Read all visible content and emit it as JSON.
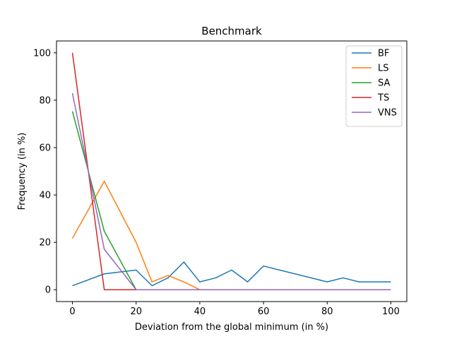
{
  "chart_data": {
    "type": "line",
    "title": "Benchmark",
    "xlabel": "Deviation from the global minimum (in %)",
    "ylabel": "Frequency (in %)",
    "xlim": [
      -5,
      105
    ],
    "ylim": [
      -5,
      105
    ],
    "xticks": [
      0,
      20,
      40,
      60,
      80,
      100
    ],
    "yticks": [
      0,
      20,
      40,
      60,
      80,
      100
    ],
    "grid": false,
    "legend_position": "top-right",
    "series": [
      {
        "name": "BF",
        "color": "#1f77b4",
        "x": [
          0,
          10,
          20,
          25,
          30,
          35,
          40,
          45,
          50,
          55,
          60,
          80,
          85,
          90,
          100
        ],
        "y": [
          1.7,
          6.7,
          8.3,
          1.7,
          5.0,
          11.7,
          3.3,
          5.0,
          8.3,
          3.3,
          10.0,
          3.3,
          5.0,
          3.3,
          3.3
        ]
      },
      {
        "name": "LS",
        "color": "#ff7f0e",
        "x": [
          0,
          10,
          20,
          25,
          30,
          35,
          40,
          100
        ],
        "y": [
          21.7,
          45.8,
          20.0,
          3.3,
          6.0,
          3.3,
          0,
          0
        ]
      },
      {
        "name": "SA",
        "color": "#2ca02c",
        "x": [
          0,
          10,
          20,
          100
        ],
        "y": [
          75.3,
          24.7,
          0,
          0
        ]
      },
      {
        "name": "TS",
        "color": "#d62728",
        "x": [
          0,
          10,
          100
        ],
        "y": [
          100,
          0,
          0
        ]
      },
      {
        "name": "VNS",
        "color": "#9467bd",
        "x": [
          0,
          10,
          20,
          100
        ],
        "y": [
          82.9,
          17.1,
          0,
          0
        ]
      }
    ]
  }
}
